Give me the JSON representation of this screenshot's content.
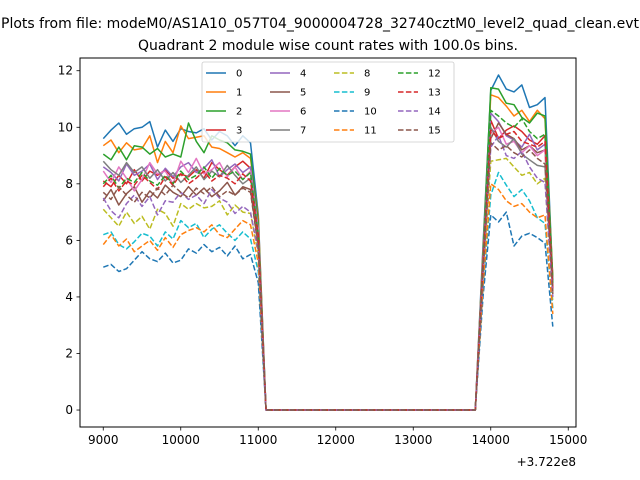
{
  "chart_data": {
    "type": "line",
    "suptitle": "Plots from file: modeM0/AS1A10_057T04_9000004728_32740cztM0_level2_quad_clean.evt",
    "title": "Quadrant 2 module wise count rates with 100.0s bins.",
    "xlabel": "",
    "ylabel": "",
    "x_offset_label": "+3.722e8",
    "xlim": [
      8700,
      15100
    ],
    "ylim": [
      -0.6,
      12.45
    ],
    "x_ticks": [
      9000,
      10000,
      11000,
      12000,
      13000,
      14000,
      15000
    ],
    "x_tick_labels": [
      "9000",
      "10000",
      "11000",
      "12000",
      "13000",
      "14000",
      "15000"
    ],
    "y_ticks": [
      0,
      2,
      4,
      6,
      8,
      10,
      12
    ],
    "y_tick_labels": [
      "0",
      "2",
      "4",
      "6",
      "8",
      "10",
      "12"
    ],
    "grid": false,
    "legend_position": "upper-center",
    "x": [
      9000,
      9100,
      9200,
      9300,
      9400,
      9500,
      9600,
      9700,
      9800,
      9900,
      10000,
      10100,
      10200,
      10300,
      10400,
      10500,
      10600,
      10700,
      10800,
      10900,
      11000,
      11100,
      11200,
      11300,
      11400,
      11500,
      11600,
      11700,
      11800,
      11900,
      12000,
      12100,
      12200,
      12300,
      12400,
      12500,
      12600,
      12700,
      12800,
      12900,
      13000,
      13100,
      13200,
      13300,
      13400,
      13500,
      13600,
      13700,
      13800,
      13900,
      14000,
      14100,
      14200,
      14300,
      14400,
      14500,
      14600,
      14700,
      14800
    ],
    "series": [
      {
        "name": "0",
        "color": "#1f77b4",
        "dash": "solid",
        "values": [
          9.6,
          9.9,
          10.15,
          9.75,
          9.95,
          10.0,
          10.2,
          9.3,
          9.9,
          9.5,
          9.95,
          9.85,
          9.8,
          9.95,
          9.55,
          9.85,
          9.7,
          9.35,
          9.7,
          9.45,
          6.9,
          0,
          0,
          0,
          0,
          0,
          0,
          0,
          0,
          0,
          0,
          0,
          0,
          0,
          0,
          0,
          0,
          0,
          0,
          0,
          0,
          0,
          0,
          0,
          0,
          0,
          0,
          0,
          0,
          5.8,
          11.3,
          11.85,
          11.35,
          11.25,
          11.5,
          10.7,
          10.8,
          11.05,
          4.6
        ]
      },
      {
        "name": "1",
        "color": "#ff7f0e",
        "dash": "solid",
        "values": [
          9.35,
          9.55,
          9.1,
          9.45,
          9.2,
          9.25,
          9.7,
          8.75,
          9.5,
          9.1,
          10.05,
          9.6,
          9.65,
          9.7,
          9.3,
          9.25,
          9.1,
          8.95,
          9.1,
          8.9,
          6.8,
          0,
          0,
          0,
          0,
          0,
          0,
          0,
          0,
          0,
          0,
          0,
          0,
          0,
          0,
          0,
          0,
          0,
          0,
          0,
          0,
          0,
          0,
          0,
          0,
          0,
          0,
          0,
          0,
          5.6,
          11.15,
          11.05,
          10.75,
          10.4,
          10.6,
          10.2,
          10.6,
          10.3,
          4.7
        ]
      },
      {
        "name": "2",
        "color": "#2ca02c",
        "dash": "solid",
        "values": [
          9.05,
          8.85,
          9.3,
          8.85,
          9.35,
          9.3,
          9.05,
          9.25,
          8.95,
          9.05,
          8.95,
          10.15,
          9.5,
          9.1,
          9.7,
          9.55,
          9.45,
          9.2,
          9.15,
          9.05,
          6.6,
          0,
          0,
          0,
          0,
          0,
          0,
          0,
          0,
          0,
          0,
          0,
          0,
          0,
          0,
          0,
          0,
          0,
          0,
          0,
          0,
          0,
          0,
          0,
          0,
          0,
          0,
          0,
          0,
          5.5,
          11.4,
          11.35,
          10.85,
          10.8,
          10.35,
          10.15,
          10.5,
          10.4,
          4.6
        ]
      },
      {
        "name": "3",
        "color": "#d62728",
        "dash": "solid",
        "values": [
          8.1,
          7.9,
          8.3,
          8.0,
          8.5,
          8.1,
          8.45,
          8.3,
          8.5,
          8.2,
          8.35,
          8.25,
          8.5,
          8.2,
          8.75,
          8.5,
          8.3,
          8.6,
          8.8,
          8.55,
          6.2,
          0,
          0,
          0,
          0,
          0,
          0,
          0,
          0,
          0,
          0,
          0,
          0,
          0,
          0,
          0,
          0,
          0,
          0,
          0,
          0,
          0,
          0,
          0,
          0,
          0,
          0,
          0,
          0,
          5.3,
          10.25,
          9.6,
          9.9,
          10.05,
          9.85,
          9.55,
          9.4,
          9.7,
          4.4
        ]
      },
      {
        "name": "4",
        "color": "#9467bd",
        "dash": "solid",
        "values": [
          8.6,
          8.4,
          8.1,
          8.7,
          8.3,
          8.45,
          8.7,
          8.15,
          8.55,
          8.25,
          8.6,
          8.75,
          8.4,
          8.55,
          8.85,
          8.25,
          8.5,
          8.7,
          8.4,
          8.6,
          6.4,
          0,
          0,
          0,
          0,
          0,
          0,
          0,
          0,
          0,
          0,
          0,
          0,
          0,
          0,
          0,
          0,
          0,
          0,
          0,
          0,
          0,
          0,
          0,
          0,
          0,
          0,
          0,
          0,
          5.4,
          10.5,
          10.2,
          9.7,
          9.55,
          9.3,
          9.75,
          9.2,
          9.4,
          4.5
        ]
      },
      {
        "name": "5",
        "color": "#8c564b",
        "dash": "solid",
        "values": [
          7.4,
          7.8,
          7.25,
          7.65,
          7.9,
          7.35,
          7.75,
          7.5,
          7.95,
          7.7,
          7.55,
          7.9,
          7.6,
          7.85,
          7.55,
          7.75,
          8.05,
          7.6,
          7.9,
          7.8,
          5.8,
          0,
          0,
          0,
          0,
          0,
          0,
          0,
          0,
          0,
          0,
          0,
          0,
          0,
          0,
          0,
          0,
          0,
          0,
          0,
          0,
          0,
          0,
          0,
          0,
          0,
          0,
          0,
          0,
          5.0,
          9.6,
          10.15,
          9.75,
          9.6,
          9.2,
          9.35,
          9.1,
          9.2,
          4.1
        ]
      },
      {
        "name": "6",
        "color": "#e377c2",
        "dash": "solid",
        "values": [
          8.45,
          8.05,
          8.6,
          8.2,
          7.75,
          8.15,
          8.75,
          8.35,
          8.45,
          8.0,
          8.8,
          8.4,
          8.9,
          8.35,
          8.5,
          8.75,
          8.25,
          8.6,
          8.15,
          8.45,
          6.3,
          0,
          0,
          0,
          0,
          0,
          0,
          0,
          0,
          0,
          0,
          0,
          0,
          0,
          0,
          0,
          0,
          0,
          0,
          0,
          0,
          0,
          0,
          0,
          0,
          0,
          0,
          0,
          0,
          5.35,
          9.8,
          10.0,
          9.4,
          9.5,
          9.1,
          9.35,
          9.0,
          9.2,
          4.4
        ]
      },
      {
        "name": "7",
        "color": "#7f7f7f",
        "dash": "solid",
        "values": [
          8.8,
          8.5,
          8.3,
          8.75,
          8.4,
          8.6,
          8.2,
          8.5,
          8.1,
          8.4,
          8.05,
          8.3,
          8.6,
          8.15,
          8.45,
          8.25,
          8.65,
          8.3,
          8.0,
          8.2,
          6.1,
          0,
          0,
          0,
          0,
          0,
          0,
          0,
          0,
          0,
          0,
          0,
          0,
          0,
          0,
          0,
          0,
          0,
          0,
          0,
          0,
          0,
          0,
          0,
          0,
          0,
          0,
          0,
          0,
          5.25,
          10.0,
          9.5,
          9.3,
          9.6,
          9.05,
          8.85,
          8.65,
          8.6,
          4.3
        ]
      },
      {
        "name": "8",
        "color": "#bcbd22",
        "dash": "dashed",
        "values": [
          7.1,
          6.8,
          6.5,
          7.0,
          6.6,
          6.85,
          6.4,
          7.1,
          6.95,
          6.5,
          7.3,
          7.1,
          7.3,
          7.15,
          7.2,
          7.4,
          6.9,
          7.25,
          7.0,
          6.95,
          5.5,
          0,
          0,
          0,
          0,
          0,
          0,
          0,
          0,
          0,
          0,
          0,
          0,
          0,
          0,
          0,
          0,
          0,
          0,
          0,
          0,
          0,
          0,
          0,
          0,
          0,
          0,
          0,
          0,
          4.7,
          8.8,
          8.85,
          8.9,
          8.6,
          8.3,
          8.4,
          8.0,
          8.2,
          3.8
        ]
      },
      {
        "name": "9",
        "color": "#17becf",
        "dash": "dashed",
        "values": [
          6.2,
          6.3,
          5.85,
          5.7,
          5.95,
          6.25,
          6.15,
          5.8,
          6.3,
          6.05,
          6.7,
          6.45,
          6.6,
          6.1,
          6.4,
          6.55,
          6.25,
          6.0,
          6.3,
          6.05,
          4.9,
          0,
          0,
          0,
          0,
          0,
          0,
          0,
          0,
          0,
          0,
          0,
          0,
          0,
          0,
          0,
          0,
          0,
          0,
          0,
          0,
          0,
          0,
          0,
          0,
          0,
          0,
          0,
          0,
          4.3,
          7.6,
          8.4,
          7.95,
          7.55,
          7.8,
          7.4,
          6.8,
          6.6,
          3.6
        ]
      },
      {
        "name": "10",
        "color": "#1f77b4",
        "dash": "dashed",
        "values": [
          5.05,
          5.15,
          4.9,
          5.0,
          5.3,
          5.6,
          5.35,
          5.25,
          5.55,
          5.2,
          5.3,
          5.7,
          5.55,
          5.85,
          5.6,
          5.75,
          5.45,
          5.8,
          5.35,
          5.5,
          4.5,
          0,
          0,
          0,
          0,
          0,
          0,
          0,
          0,
          0,
          0,
          0,
          0,
          0,
          0,
          0,
          0,
          0,
          0,
          0,
          0,
          0,
          0,
          0,
          0,
          0,
          0,
          0,
          0,
          4.0,
          6.9,
          6.65,
          7.0,
          5.8,
          6.15,
          6.25,
          6.1,
          5.9,
          2.95
        ]
      },
      {
        "name": "11",
        "color": "#ff7f0e",
        "dash": "dashed",
        "values": [
          5.85,
          6.2,
          5.8,
          6.05,
          5.6,
          5.8,
          6.0,
          5.65,
          6.1,
          5.75,
          6.2,
          6.35,
          6.45,
          6.3,
          6.55,
          6.2,
          6.1,
          6.4,
          6.7,
          6.55,
          5.2,
          0,
          0,
          0,
          0,
          0,
          0,
          0,
          0,
          0,
          0,
          0,
          0,
          0,
          0,
          0,
          0,
          0,
          0,
          0,
          0,
          0,
          0,
          0,
          0,
          0,
          0,
          0,
          0,
          4.4,
          8.0,
          7.8,
          7.4,
          7.2,
          7.3,
          7.0,
          6.8,
          6.9,
          3.4
        ]
      },
      {
        "name": "12",
        "color": "#2ca02c",
        "dash": "dashed",
        "values": [
          8.0,
          8.3,
          7.85,
          8.2,
          8.05,
          8.4,
          8.1,
          7.95,
          8.3,
          8.0,
          8.45,
          8.15,
          8.3,
          8.6,
          8.2,
          8.55,
          8.3,
          8.45,
          8.15,
          8.4,
          6.2,
          0,
          0,
          0,
          0,
          0,
          0,
          0,
          0,
          0,
          0,
          0,
          0,
          0,
          0,
          0,
          0,
          0,
          0,
          0,
          0,
          0,
          0,
          0,
          0,
          0,
          0,
          0,
          0,
          5.2,
          10.6,
          10.4,
          10.15,
          10.0,
          10.3,
          9.85,
          9.6,
          9.75,
          4.5
        ]
      },
      {
        "name": "13",
        "color": "#d62728",
        "dash": "dashed",
        "values": [
          7.9,
          8.2,
          7.75,
          8.1,
          7.95,
          8.3,
          8.05,
          7.8,
          8.25,
          7.95,
          8.35,
          8.0,
          8.2,
          8.45,
          8.1,
          8.3,
          8.2,
          8.0,
          8.35,
          8.1,
          6.15,
          0,
          0,
          0,
          0,
          0,
          0,
          0,
          0,
          0,
          0,
          0,
          0,
          0,
          0,
          0,
          0,
          0,
          0,
          0,
          0,
          0,
          0,
          0,
          0,
          0,
          0,
          0,
          0,
          5.15,
          9.9,
          9.6,
          9.75,
          9.85,
          9.5,
          9.4,
          9.3,
          9.5,
          4.3
        ]
      },
      {
        "name": "14",
        "color": "#9467bd",
        "dash": "dashed",
        "values": [
          7.5,
          7.05,
          6.8,
          7.3,
          7.6,
          7.2,
          7.55,
          6.9,
          7.4,
          7.35,
          7.7,
          7.45,
          7.6,
          7.3,
          7.8,
          7.5,
          7.35,
          6.95,
          7.2,
          7.0,
          5.6,
          0,
          0,
          0,
          0,
          0,
          0,
          0,
          0,
          0,
          0,
          0,
          0,
          0,
          0,
          0,
          0,
          0,
          0,
          0,
          0,
          0,
          0,
          0,
          0,
          0,
          0,
          0,
          0,
          4.8,
          9.3,
          9.7,
          9.0,
          8.9,
          9.15,
          8.6,
          8.2,
          8.05,
          4.0
        ]
      },
      {
        "name": "15",
        "color": "#8c564b",
        "dash": "dashed",
        "values": [
          7.7,
          7.45,
          7.9,
          7.6,
          7.35,
          7.7,
          7.5,
          7.85,
          7.6,
          7.95,
          7.7,
          7.5,
          7.85,
          7.65,
          7.9,
          7.55,
          7.75,
          7.6,
          7.85,
          7.7,
          5.75,
          0,
          0,
          0,
          0,
          0,
          0,
          0,
          0,
          0,
          0,
          0,
          0,
          0,
          0,
          0,
          0,
          0,
          0,
          0,
          0,
          0,
          0,
          0,
          0,
          0,
          0,
          0,
          0,
          4.9,
          9.45,
          9.2,
          9.35,
          9.1,
          8.95,
          9.2,
          8.9,
          8.7,
          4.2
        ]
      }
    ]
  }
}
